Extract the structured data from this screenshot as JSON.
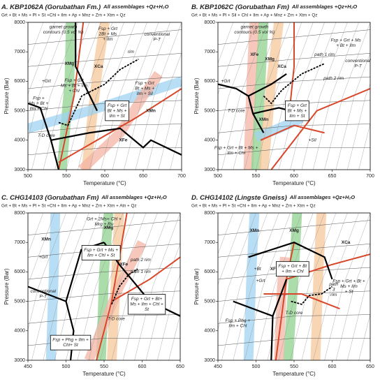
{
  "chart_data": [
    {
      "type": "pseudosection",
      "title": "A. KBP1062A (Gorubathan Fm.)",
      "subtitle": "All assemblages +Qz+H₂O",
      "assemblage": "Grt + Bt + Ms + Pl + St +Chl + Ilm + Ap + Mnz + Zrn + Xtm + Qz",
      "x_label": "Temperature (°C)",
      "y_label": "Pressure (Bar)",
      "xlim": [
        500,
        700
      ],
      "xticks": [
        500,
        550,
        600,
        650,
        700
      ],
      "ylim": [
        3000,
        8000
      ],
      "yticks": [
        3000,
        4000,
        5000,
        6000,
        7000,
        8000
      ],
      "labels": [
        {
          "lines": [
            "garnet growth",
            "contours (0.5 vol %)"
          ]
        },
        {
          "lines": [
            "Fsp + Grt",
            "2Bt + Ms",
            "+ Ilm"
          ]
        },
        {
          "lines": [
            "conventional",
            "P-T"
          ]
        },
        {
          "lines": [
            "XMg"
          ],
          "color": "#2e9b3f"
        },
        {
          "lines": [
            "XCa"
          ],
          "color": "#e8962f"
        },
        {
          "lines": [
            "XMn"
          ],
          "color": "#2a8fd0"
        },
        {
          "lines": [
            "XFe"
          ],
          "color": "#d9472b"
        },
        {
          "lines": [
            "Fsp + Grt",
            "Ms + Bt + Ilm",
            "+ Chl"
          ]
        },
        {
          "lines": [
            "Fsp + Grt",
            "Bt + Ms +",
            "Ilm + Sil"
          ]
        },
        {
          "lines": [
            "rim"
          ]
        },
        {
          "lines": [
            "Fsp + Grt",
            "Bt + Ms +",
            "Ilm + St"
          ],
          "boxed": true
        },
        {
          "lines": [
            "Fsp +",
            "Ms + Bt +",
            "Ilm + Chl"
          ]
        },
        {
          "lines": [
            "T-D core"
          ]
        },
        {
          "lines": [
            "+Grt"
          ]
        }
      ]
    },
    {
      "type": "pseudosection",
      "title": "B. KBP1062C (Gorubathan Fm)",
      "subtitle": "All assemblages +Qz+H₂O",
      "assemblage": "Grt + Bt + Ms + Pl + Sil + Chl + Ilm + Ap + Mnz + Zrn + Xtm + Qz",
      "x_label": "Temperature (°C)",
      "y_label": "Pressure (Bar)",
      "xlim": [
        500,
        700
      ],
      "xticks": [
        500,
        550,
        600,
        650,
        700
      ],
      "ylim": [
        3000,
        8000
      ],
      "yticks": [
        3000,
        4000,
        5000,
        6000,
        7000,
        8000
      ],
      "labels": [
        {
          "lines": [
            "garnet growth",
            "contours (0.5 vol %)"
          ]
        },
        {
          "lines": [
            "Fsp + Grt + Ms",
            "+ Bt + Ilm"
          ]
        },
        {
          "lines": [
            "conventional",
            "P-T"
          ]
        },
        {
          "lines": [
            "XFe"
          ],
          "color": "#d9472b"
        },
        {
          "lines": [
            "XMg"
          ],
          "color": "#2e9b3f"
        },
        {
          "lines": [
            "XCa"
          ],
          "color": "#e8962f"
        },
        {
          "lines": [
            "XMn"
          ],
          "color": "#2a8fd0"
        },
        {
          "lines": [
            "path 1 rim"
          ]
        },
        {
          "lines": [
            "path 2 rim"
          ]
        },
        {
          "lines": [
            "Fsp + Grt",
            "Bt + Ms +",
            "Ilm + St"
          ],
          "boxed": true
        },
        {
          "lines": [
            "T-D core"
          ]
        },
        {
          "lines": [
            "Fsp + Grt + Bt + Ms +",
            "Ilm + Chl"
          ]
        },
        {
          "lines": [
            "+Grt"
          ]
        },
        {
          "lines": [
            "+Sil"
          ]
        }
      ]
    },
    {
      "type": "pseudosection",
      "title": "C. CHG14103 (Gorubathan Fm)",
      "subtitle": "All assemblages +Qz+H₂O",
      "assemblage": "Grt + Bt + Ms + Pl + St +Chl + Ilm + Ap + Mnz + Zrn + Xtm + Aln + Qz",
      "x_label": "Temperature (°C)",
      "y_label": "Pressure (Bar)",
      "xlim": [
        450,
        650
      ],
      "xticks": [
        450,
        500,
        550,
        600,
        650
      ],
      "ylim": [
        3000,
        8000
      ],
      "yticks": [
        3000,
        4000,
        5000,
        6000,
        7000,
        8000
      ],
      "labels": [
        {
          "lines": [
            "Grt + 2Ms+ Chl +",
            "Mrg + Ru"
          ]
        },
        {
          "lines": [
            "XMn"
          ],
          "color": "#2a8fd0"
        },
        {
          "lines": [
            "XMg"
          ],
          "color": "#2e9b3f"
        },
        {
          "lines": [
            "XFe"
          ],
          "color": "#d9472b"
        },
        {
          "lines": [
            "Fsp + Grt + Ms +",
            "Ilm + Chl + St"
          ],
          "boxed": true
        },
        {
          "lines": [
            "path 2 rim"
          ]
        },
        {
          "lines": [
            "path 1 rim"
          ]
        },
        {
          "lines": [
            "conventional",
            "P-T"
          ]
        },
        {
          "lines": [
            "Fsp + Grt + Bt+",
            "Ms + Ilm + Chl +",
            "St"
          ],
          "boxed": true
        },
        {
          "lines": [
            "T-D core"
          ]
        },
        {
          "lines": [
            "Fsp + Phg + Ilm +",
            "Chl+ St"
          ],
          "boxed": true
        },
        {
          "lines": [
            "+Grt"
          ]
        }
      ]
    },
    {
      "type": "pseudosection",
      "title": "D. CHG14102 (Lingste Gneiss)",
      "subtitle": "All assemblages +Qz+H₂O",
      "assemblage": "Grt + Bt + Ms + Pl + St +Chl + Ilm + Ap + Mnz + Zrn + Xtm + Qz",
      "x_label": "Temperature (°C)",
      "y_label": "Pressure (Bar)",
      "xlim": [
        450,
        650
      ],
      "xticks": [
        450,
        500,
        550,
        600,
        650
      ],
      "ylim": [
        3000,
        8000
      ],
      "yticks": [
        3000,
        4000,
        5000,
        6000,
        7000,
        8000
      ],
      "labels": [
        {
          "lines": [
            "XMn"
          ],
          "color": "#2a8fd0"
        },
        {
          "lines": [
            "XMg"
          ],
          "color": "#2e9b3f"
        },
        {
          "lines": [
            "XCa"
          ],
          "color": "#e8962f"
        },
        {
          "lines": [
            "XFe"
          ],
          "color": "#d9472b"
        },
        {
          "lines": [
            "Fsp + Grt + Bt",
            "+ Ilm + Chl"
          ],
          "boxed": true
        },
        {
          "lines": [
            "Fsp + Grt + Bt +",
            "Ms + Ilm",
            "+ St"
          ]
        },
        {
          "lines": [
            "path",
            "3",
            "rim"
          ]
        },
        {
          "lines": [
            "T-D core"
          ]
        },
        {
          "lines": [
            "Fsp + Phg +",
            "Ilm + Chl"
          ]
        },
        {
          "lines": [
            "+Grt"
          ]
        },
        {
          "lines": [
            "+Bt"
          ]
        }
      ]
    }
  ]
}
